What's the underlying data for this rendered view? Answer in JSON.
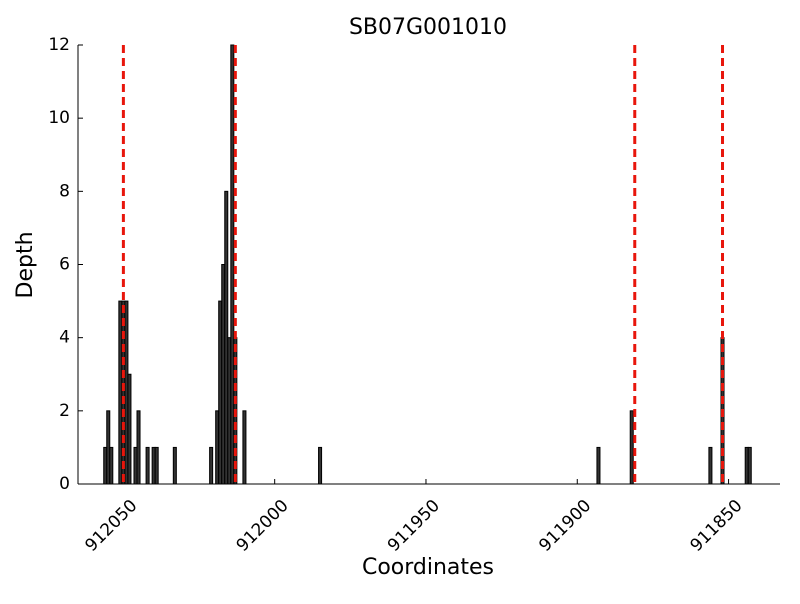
{
  "chart_data": {
    "type": "bar",
    "title": "SB07G001010",
    "x_label": "Coordinates",
    "y_label": "Depth",
    "x": [
      912056,
      912055,
      912054,
      912051,
      912050,
      912049,
      912048,
      912046,
      912045,
      912042,
      912040,
      912039,
      912033,
      912021,
      912019,
      912018,
      912017,
      912016,
      912015,
      912014,
      912013,
      912010,
      911985,
      911893,
      911882,
      911856,
      911852,
      911844,
      911843
    ],
    "values": [
      1,
      2,
      1,
      5,
      5,
      5,
      3,
      1,
      2,
      1,
      1,
      1,
      1,
      1,
      2,
      5,
      6,
      8,
      4,
      12,
      4,
      2,
      1,
      1,
      2,
      1,
      4,
      1,
      1
    ],
    "color": "#333333",
    "vlines": [
      912050,
      912013,
      911881,
      911852
    ],
    "vline_color": "#e8160c",
    "xlim": [
      912065,
      911833
    ],
    "xticks": [
      912050,
      912000,
      911950,
      911900,
      911850
    ],
    "ylim": [
      0,
      12
    ],
    "yticks": [
      0,
      2,
      4,
      6,
      8,
      10,
      12
    ]
  }
}
